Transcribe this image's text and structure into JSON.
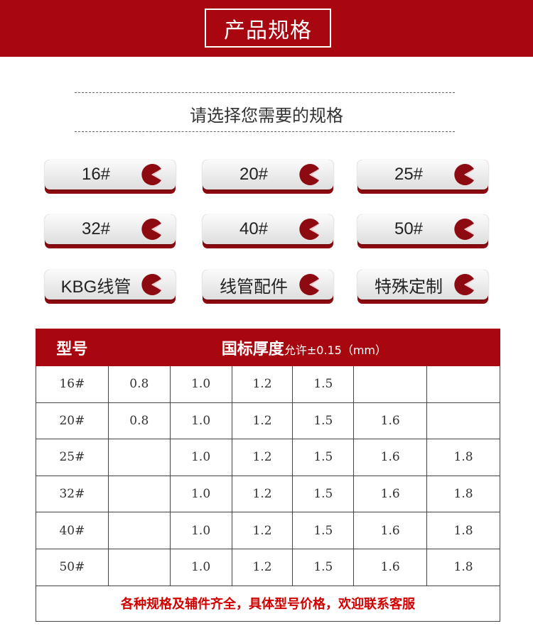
{
  "header": {
    "title": "产品规格"
  },
  "subtitle": "请选择您需要的规格",
  "buttons": [
    {
      "label": "16#"
    },
    {
      "label": "20#"
    },
    {
      "label": "25#"
    },
    {
      "label": "32#"
    },
    {
      "label": "40#"
    },
    {
      "label": "50#"
    },
    {
      "label": "KBG线管"
    },
    {
      "label": "线管配件"
    },
    {
      "label": "特殊定制"
    }
  ],
  "colors": {
    "brand": "#a8070f",
    "footer_text": "#d10000"
  },
  "table": {
    "header_model": "型号",
    "header_thickness": "国标厚度",
    "header_note": "允许±0.15（mm）",
    "rows": [
      {
        "model": "16#",
        "values": [
          "0.8",
          "1.0",
          "1.2",
          "1.5",
          "",
          ""
        ]
      },
      {
        "model": "20#",
        "values": [
          "0.8",
          "1.0",
          "1.2",
          "1.5",
          "1.6",
          ""
        ]
      },
      {
        "model": "25#",
        "values": [
          "",
          "1.0",
          "1.2",
          "1.5",
          "1.6",
          "1.8"
        ]
      },
      {
        "model": "32#",
        "values": [
          "",
          "1.0",
          "1.2",
          "1.5",
          "1.6",
          "1.8"
        ]
      },
      {
        "model": "40#",
        "values": [
          "",
          "1.0",
          "1.2",
          "1.5",
          "1.6",
          "1.8"
        ]
      },
      {
        "model": "50#",
        "values": [
          "",
          "1.0",
          "1.2",
          "1.5",
          "1.6",
          "1.8"
        ]
      }
    ],
    "footer": "各种规格及辅件齐全，具体型号价格，欢迎联系客服"
  }
}
